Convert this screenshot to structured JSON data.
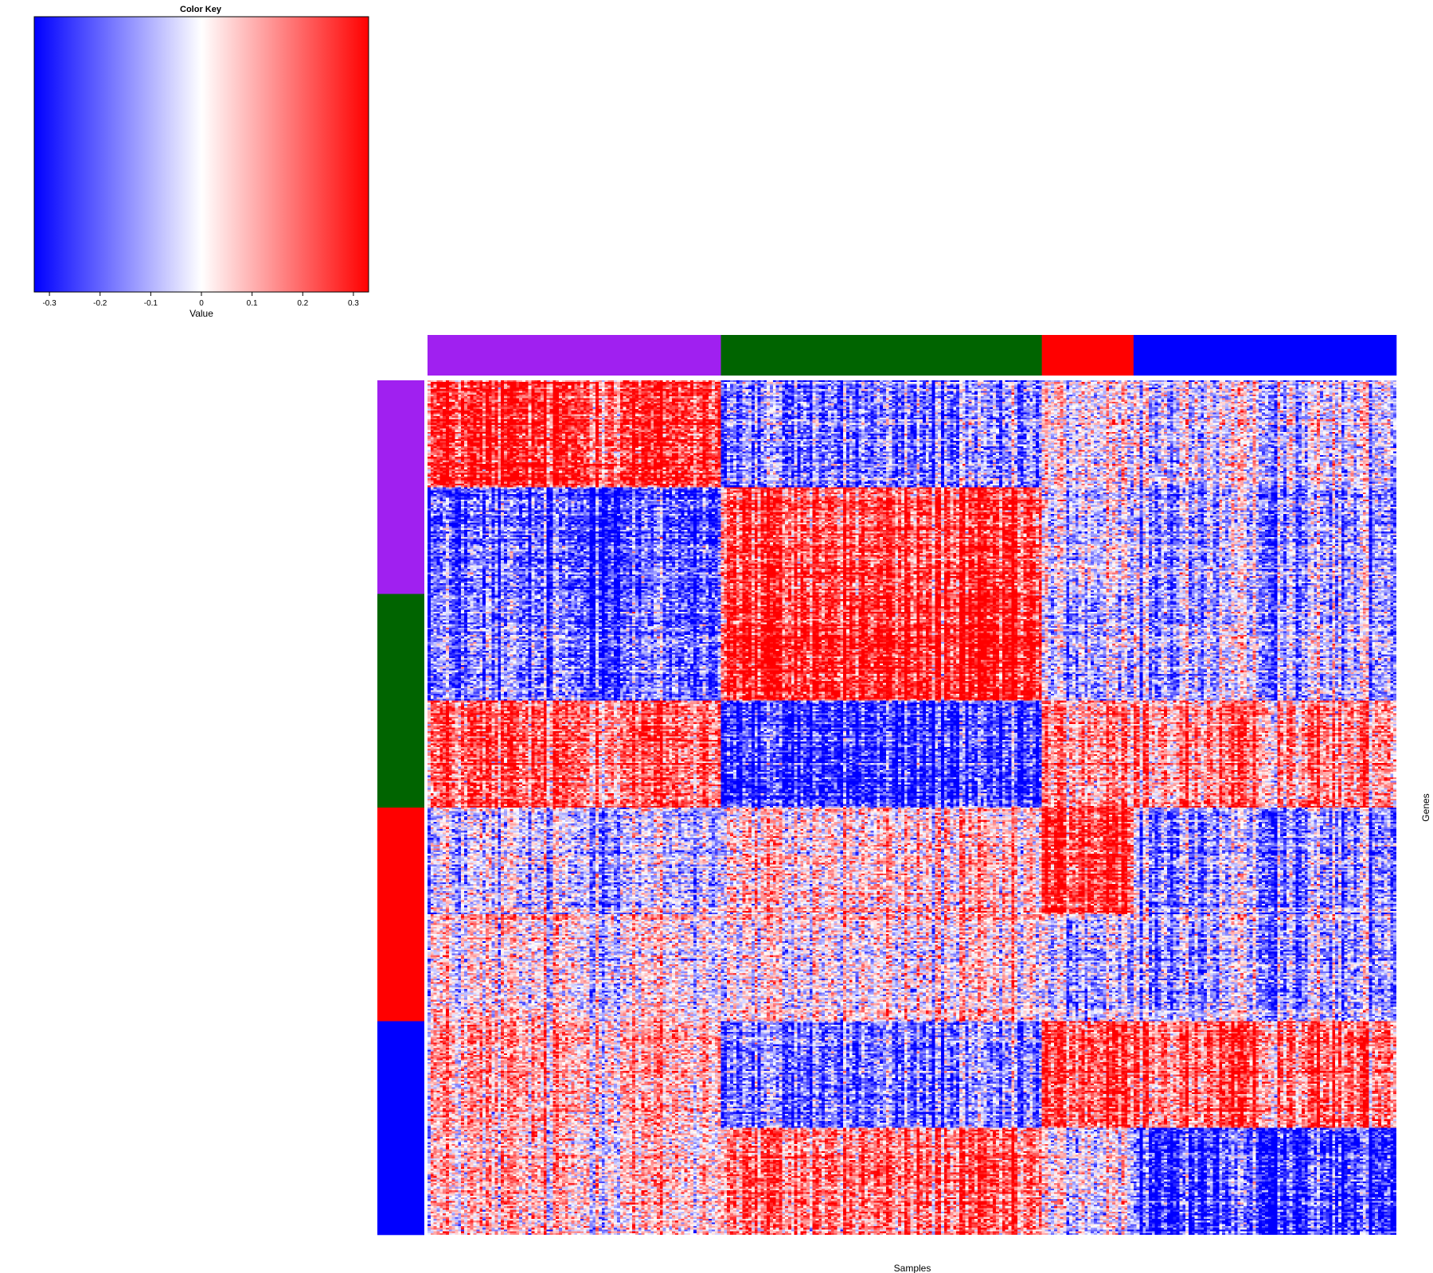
{
  "chart_data": {
    "type": "heatmap",
    "xlabel": "Samples",
    "ylabel": "Genes",
    "color_key": {
      "title": "Color Key",
      "xlabel": "Value",
      "range": [
        -0.33,
        0.33
      ],
      "ticks": [
        "-0.3",
        "-0.2",
        "-0.1",
        "0",
        "0.1",
        "0.2",
        "0.3"
      ],
      "tick_values": [
        -0.3,
        -0.2,
        -0.1,
        0,
        0.1,
        0.2,
        0.3
      ],
      "low_color": "#0000ff",
      "mid_color": "#ffffff",
      "high_color": "#ff0000"
    },
    "column_groups": [
      {
        "color": "#a020f0",
        "count": 96
      },
      {
        "color": "#006400",
        "count": 105
      },
      {
        "color": "#ff0000",
        "count": 30
      },
      {
        "color": "#0000ff",
        "count": 86
      }
    ],
    "row_groups": [
      {
        "color": "#a020f0",
        "count": 2
      },
      {
        "color": "#006400",
        "count": 2
      },
      {
        "color": "#ff0000",
        "count": 2
      },
      {
        "color": "#0000ff",
        "count": 2
      }
    ],
    "row_blocks": [
      {
        "pattern": [
          0.8,
          -0.55,
          -0.05,
          -0.15
        ]
      },
      {
        "pattern": [
          -0.7,
          0.7,
          -0.15,
          -0.35
        ]
      },
      {
        "pattern": [
          -0.55,
          0.9,
          -0.3,
          -0.25
        ]
      },
      {
        "pattern": [
          0.6,
          -0.85,
          0.4,
          0.45
        ]
      },
      {
        "pattern": [
          -0.2,
          0.15,
          0.8,
          -0.4
        ]
      },
      {
        "pattern": [
          0.05,
          0.05,
          -0.25,
          -0.3
        ]
      },
      {
        "pattern": [
          0.25,
          -0.6,
          0.65,
          0.55
        ]
      },
      {
        "pattern": [
          0.2,
          0.55,
          -0.05,
          -0.75
        ]
      }
    ]
  }
}
